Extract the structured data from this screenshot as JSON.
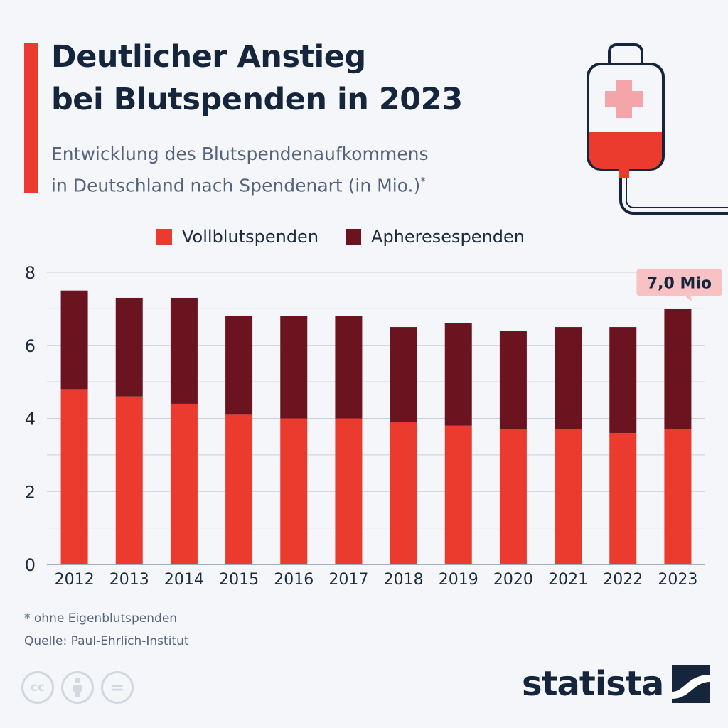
{
  "header": {
    "title_line1": "Deutlicher Anstieg",
    "title_line2": "bei Blutspenden in 2023",
    "subtitle_line1": "Entwicklung des Blutspendenaufkommens",
    "subtitle_line2": "in Deutschland nach Spendenart (in Mio.)",
    "subtitle_mark": "*"
  },
  "colors": {
    "accent": "#ea3b2e",
    "vollblut": "#ea3b2e",
    "apherese": "#6b1420",
    "title": "#14253c",
    "callout_bg": "#f8c2c4",
    "grid": "#c7cfda"
  },
  "chart_data": {
    "type": "bar",
    "stacked": true,
    "categories": [
      "2012",
      "2013",
      "2014",
      "2015",
      "2016",
      "2017",
      "2018",
      "2019",
      "2020",
      "2021",
      "2022",
      "2023"
    ],
    "series": [
      {
        "name": "Vollblutspenden",
        "values": [
          4.8,
          4.6,
          4.4,
          4.1,
          4.0,
          4.0,
          3.9,
          3.8,
          3.7,
          3.7,
          3.6,
          3.7
        ]
      },
      {
        "name": "Apheresespenden",
        "values": [
          2.7,
          2.7,
          2.9,
          2.7,
          2.8,
          2.8,
          2.6,
          2.8,
          2.7,
          2.8,
          2.9,
          3.3
        ]
      }
    ],
    "ylim": [
      0,
      8
    ],
    "yticks": [
      0,
      2,
      4,
      6,
      8
    ],
    "grid": true,
    "legend": "top-center",
    "annotation": {
      "category": "2023",
      "text": "7,0 Mio"
    }
  },
  "footer": {
    "footnote": "* ohne Eigenblutspenden",
    "source": "Quelle: Paul-Ehrlich-Institut",
    "brand": "statista",
    "cc_label": "cc",
    "eq_label": "="
  }
}
